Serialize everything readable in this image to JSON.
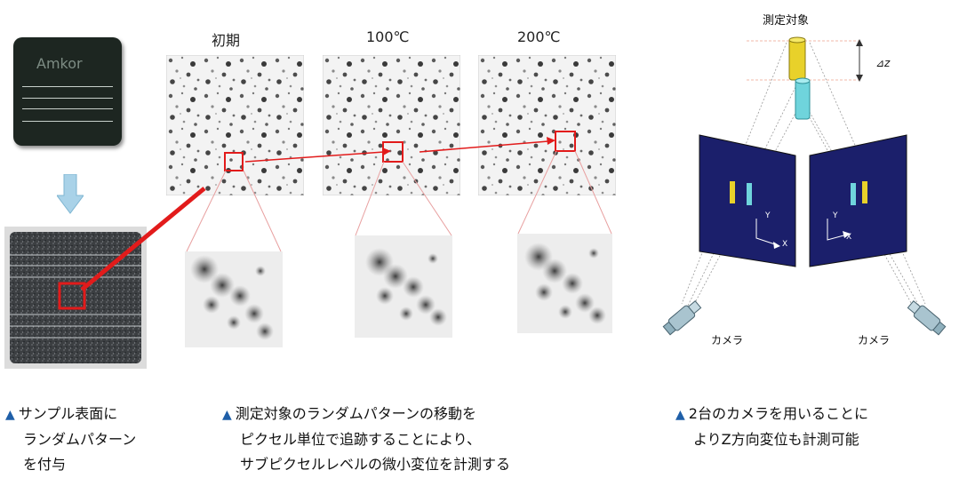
{
  "headers": {
    "initial": "初期",
    "t100": "100℃",
    "t200": "200℃"
  },
  "chip": {
    "logo": "Amkor"
  },
  "diagram": {
    "target_label": "測定対象",
    "dz_label": "⊿z",
    "axis_x": "X",
    "axis_y": "Y",
    "camera_left": "カメラ",
    "camera_right": "カメラ"
  },
  "captions": {
    "left": [
      "サンプル表面に",
      "ランダムパターン",
      "を付与"
    ],
    "middle": [
      "測定対象のランダムパターンの移動を",
      "ピクセル単位で追跡することにより、",
      "サブピクセルレベルの微小変位を計測する"
    ],
    "right": [
      "2台のカメラを用いることに",
      "よりZ方向変位も計測可能"
    ]
  },
  "colors": {
    "highlight": "#e21b1b",
    "caption_marker": "#1f5fa8",
    "panel": "#1b1f6b",
    "target_top": "#e8d12a",
    "target_bottom": "#6fd4dc",
    "arrow": "#a9d2e8"
  }
}
